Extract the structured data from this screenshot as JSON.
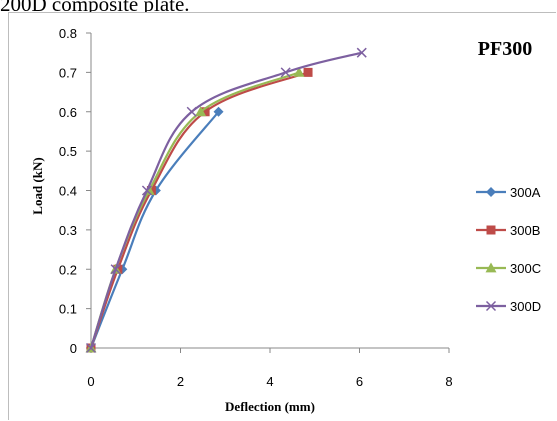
{
  "caption_fragment": "200D composite plate.",
  "chart_data": {
    "type": "line",
    "title": "PF300",
    "xlabel": "Deflection (mm)",
    "ylabel": "Load (kN)",
    "xlim": [
      0,
      8
    ],
    "ylim": [
      0,
      0.8
    ],
    "x_ticks": [
      "0",
      "2",
      "4",
      "6",
      "8"
    ],
    "y_ticks": [
      "0",
      "0.1",
      "0.2",
      "0.3",
      "0.4",
      "0.5",
      "0.6",
      "0.7",
      "0.8"
    ],
    "grid": false,
    "legend_position": "right",
    "series": [
      {
        "name": "300A",
        "color": "#4a7ebb",
        "marker": "diamond",
        "points": [
          [
            0,
            0
          ],
          [
            0.7,
            0.2
          ],
          [
            1.45,
            0.4
          ],
          [
            2.85,
            0.6
          ]
        ]
      },
      {
        "name": "300B",
        "color": "#be4b48",
        "marker": "square",
        "points": [
          [
            0,
            0
          ],
          [
            0.6,
            0.2
          ],
          [
            1.35,
            0.4
          ],
          [
            2.55,
            0.6
          ],
          [
            4.85,
            0.7
          ]
        ]
      },
      {
        "name": "300C",
        "color": "#98b954",
        "marker": "triangle",
        "points": [
          [
            0,
            0
          ],
          [
            0.55,
            0.2
          ],
          [
            1.3,
            0.4
          ],
          [
            2.45,
            0.6
          ],
          [
            4.65,
            0.7
          ]
        ]
      },
      {
        "name": "300D",
        "color": "#7d60a0",
        "marker": "x",
        "points": [
          [
            0,
            0
          ],
          [
            0.55,
            0.2
          ],
          [
            1.25,
            0.4
          ],
          [
            2.25,
            0.6
          ],
          [
            4.35,
            0.7
          ],
          [
            6.05,
            0.75
          ]
        ]
      }
    ]
  }
}
